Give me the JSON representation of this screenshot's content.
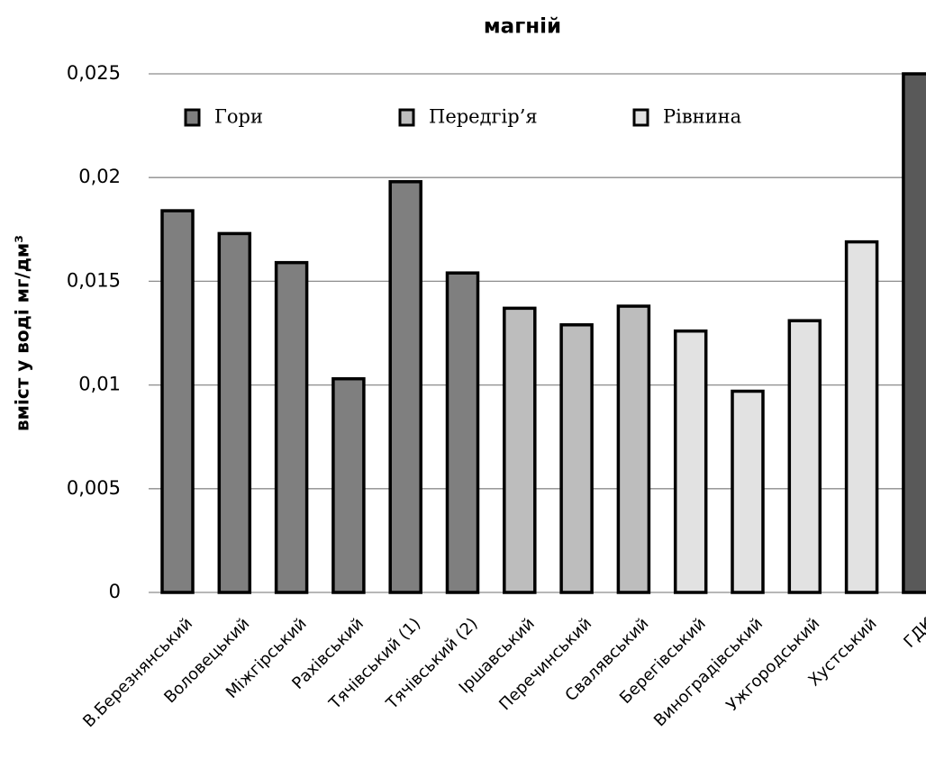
{
  "chart_data": {
    "type": "bar",
    "title": "магній",
    "y_label": "вміст у воді мг/дм³",
    "categories": [
      "В.Березнянський",
      "Воловецький",
      "Міжгірський",
      "Рахівський",
      "Тячівський (1)",
      "Тячівський (2)",
      "Іршавський",
      "Перечинський",
      "Свалявський",
      "Берегівський",
      "Виноградівський",
      "Ужгородський",
      "Хустський",
      "ГДК"
    ],
    "series": [
      {
        "name": "Гори",
        "color": "#7f7f7f",
        "values": [
          0.0184,
          0.0173,
          0.0159,
          0.0103,
          0.0198,
          0.0154,
          null,
          null,
          null,
          null,
          null,
          null,
          null,
          null
        ]
      },
      {
        "name": "Передгір’я",
        "color": "#bdbdbd",
        "values": [
          null,
          null,
          null,
          null,
          null,
          null,
          0.0137,
          0.0129,
          0.0138,
          null,
          null,
          null,
          null,
          null
        ]
      },
      {
        "name": "Рівнина",
        "color": "#e2e2e2",
        "values": [
          null,
          null,
          null,
          null,
          null,
          null,
          null,
          null,
          null,
          0.0126,
          0.0097,
          0.0131,
          0.0169,
          null
        ]
      },
      {
        "color": "#595959",
        "values": [
          null,
          null,
          null,
          null,
          null,
          null,
          null,
          null,
          null,
          null,
          null,
          null,
          null,
          0.025
        ]
      }
    ],
    "ylim": [
      0,
      0.025
    ],
    "yticks": [
      0,
      {
        "value": 0.005,
        "label": "0,005"
      },
      {
        "value": 0.01,
        "label": "0,01"
      },
      {
        "value": 0.015,
        "label": "0,015"
      },
      {
        "value": 0.02,
        "label": "0,02"
      },
      {
        "value": 0.025,
        "label": "0,025"
      }
    ],
    "grid": true,
    "legend": "top"
  }
}
